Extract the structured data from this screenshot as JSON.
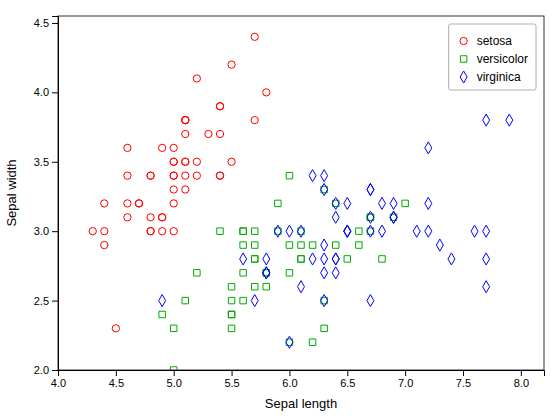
{
  "chart_data": {
    "type": "scatter",
    "xlabel": "Sepal length",
    "ylabel": "Sepal width",
    "xlim": [
      4.0,
      8.2
    ],
    "ylim": [
      2.0,
      4.55
    ],
    "xticks": [
      {
        "value": 4.0,
        "label": "4.0"
      },
      4.5,
      {
        "value": 5.0,
        "label": "5.0"
      },
      5.5,
      {
        "value": 6.0,
        "label": "6.0"
      },
      6.5,
      {
        "value": 7.0,
        "label": "7.0"
      },
      7.5,
      {
        "value": 8.0,
        "label": "8.0"
      }
    ],
    "yticks": [
      {
        "value": 2.0,
        "label": "2.0"
      },
      2.5,
      {
        "value": 3.0,
        "label": "3.0"
      },
      3.5,
      {
        "value": 4.0,
        "label": "4.0"
      },
      4.5
    ],
    "grid": false,
    "legend": "upper right",
    "series": [
      {
        "name": "setosa",
        "color": "#ff0000",
        "marker": "circle",
        "x": [
          5.1,
          4.9,
          4.7,
          4.6,
          5.0,
          5.4,
          4.6,
          5.0,
          4.4,
          4.9,
          5.4,
          4.8,
          4.8,
          4.3,
          5.8,
          5.7,
          5.4,
          5.1,
          5.7,
          5.1,
          5.4,
          5.1,
          4.6,
          5.1,
          4.8,
          5.0,
          5.0,
          5.2,
          5.2,
          4.7,
          4.8,
          5.4,
          5.2,
          5.5,
          4.9,
          5.0,
          5.5,
          4.9,
          4.4,
          5.1,
          5.0,
          4.5,
          4.4,
          5.0,
          5.1,
          4.8,
          5.1,
          4.6,
          5.3,
          5.0
        ],
        "values": [
          3.5,
          3.0,
          3.2,
          3.1,
          3.6,
          3.9,
          3.4,
          3.4,
          2.9,
          3.1,
          3.7,
          3.4,
          3.0,
          3.0,
          4.0,
          4.4,
          3.9,
          3.5,
          3.8,
          3.8,
          3.4,
          3.7,
          3.6,
          3.3,
          3.4,
          3.0,
          3.4,
          3.5,
          3.4,
          3.2,
          3.1,
          3.4,
          4.1,
          4.2,
          3.1,
          3.2,
          3.5,
          3.6,
          3.0,
          3.4,
          3.5,
          2.3,
          3.2,
          3.5,
          3.8,
          3.0,
          3.8,
          3.2,
          3.7,
          3.3
        ]
      },
      {
        "name": "versicolor",
        "color": "#00aa00",
        "marker": "square",
        "x": [
          7.0,
          6.4,
          6.9,
          5.5,
          6.5,
          5.7,
          6.3,
          4.9,
          6.6,
          5.2,
          5.0,
          5.9,
          6.0,
          6.1,
          5.6,
          6.7,
          5.6,
          5.8,
          6.2,
          5.6,
          5.9,
          6.1,
          6.3,
          6.1,
          6.4,
          6.6,
          6.8,
          6.7,
          6.0,
          5.7,
          5.5,
          5.5,
          5.8,
          6.0,
          5.4,
          6.0,
          6.7,
          6.3,
          5.6,
          5.5,
          5.5,
          6.1,
          5.8,
          5.0,
          5.6,
          5.7,
          5.7,
          6.2,
          5.1,
          5.7
        ],
        "values": [
          3.2,
          3.2,
          3.1,
          2.3,
          2.8,
          2.8,
          3.3,
          2.4,
          2.9,
          2.7,
          2.0,
          3.0,
          2.2,
          2.9,
          2.9,
          3.1,
          3.0,
          2.7,
          2.2,
          2.5,
          3.2,
          2.8,
          2.5,
          2.8,
          2.9,
          3.0,
          2.8,
          3.0,
          2.9,
          2.6,
          2.4,
          2.4,
          2.7,
          2.7,
          3.0,
          3.4,
          3.1,
          2.3,
          3.0,
          2.5,
          2.6,
          3.0,
          2.6,
          2.3,
          2.7,
          3.0,
          2.9,
          2.9,
          2.5,
          2.8
        ]
      },
      {
        "name": "virginica",
        "color": "#0000ff",
        "marker": "diamond",
        "x": [
          6.3,
          5.8,
          7.1,
          6.3,
          6.5,
          7.6,
          4.9,
          7.3,
          6.7,
          7.2,
          6.5,
          6.4,
          6.8,
          5.7,
          5.8,
          6.4,
          6.5,
          7.7,
          7.7,
          6.0,
          6.9,
          5.6,
          7.7,
          6.3,
          6.7,
          7.2,
          6.2,
          6.1,
          6.4,
          7.2,
          7.4,
          7.9,
          6.4,
          6.3,
          6.1,
          7.7,
          6.3,
          6.4,
          6.0,
          6.9,
          6.7,
          6.9,
          5.8,
          6.8,
          6.7,
          6.7,
          6.3,
          6.5,
          6.2,
          5.9
        ],
        "values": [
          3.3,
          2.7,
          3.0,
          2.9,
          3.0,
          3.0,
          2.5,
          2.9,
          2.5,
          3.6,
          3.2,
          2.7,
          3.0,
          2.5,
          2.8,
          3.2,
          3.0,
          3.8,
          2.6,
          2.2,
          3.2,
          2.8,
          2.8,
          2.7,
          3.3,
          3.2,
          2.8,
          3.0,
          2.8,
          3.0,
          2.8,
          3.8,
          2.8,
          2.8,
          2.6,
          3.0,
          3.4,
          3.1,
          3.0,
          3.1,
          3.1,
          3.1,
          2.7,
          3.2,
          3.3,
          3.0,
          2.5,
          3.0,
          3.4,
          3.0
        ]
      }
    ]
  }
}
